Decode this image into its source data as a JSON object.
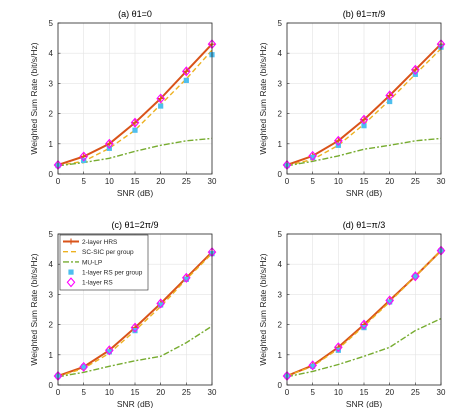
{
  "colors": {
    "hrs": "#d95319",
    "scsic": "#edb120",
    "mulp": "#77ac30",
    "rs_group": "#4dbeee",
    "rs1": "#ff00ff"
  },
  "legend_entries": [
    "2-layer HRS",
    "SC-SIC per group",
    "MU-LP",
    "1-layer RS per group",
    "1-layer RS"
  ],
  "chart_data": [
    {
      "type": "line",
      "title": "(a) θ1=0",
      "xlabel": "SNR (dB)",
      "ylabel": "Weighted Sum Rate (bit/s/Hz)",
      "xlim": [
        0,
        30
      ],
      "ylim": [
        0,
        5
      ],
      "xticks": [
        0,
        5,
        10,
        15,
        20,
        25,
        30
      ],
      "yticks": [
        0,
        1,
        2,
        3,
        4,
        5
      ],
      "grid": true,
      "legend": false,
      "x": [
        0,
        5,
        10,
        15,
        20,
        25,
        30
      ],
      "series": [
        {
          "name": "2-layer HRS",
          "values": [
            0.3,
            0.58,
            1.0,
            1.7,
            2.5,
            3.4,
            4.3
          ]
        },
        {
          "name": "SC-SIC per group",
          "values": [
            0.28,
            0.42,
            0.85,
            1.45,
            2.3,
            3.15,
            4.1
          ]
        },
        {
          "name": "MU-LP",
          "values": [
            0.27,
            0.38,
            0.52,
            0.75,
            0.95,
            1.1,
            1.18
          ]
        },
        {
          "name": "1-layer RS per group",
          "values": [
            0.28,
            0.45,
            0.85,
            1.45,
            2.25,
            3.1,
            3.95
          ]
        },
        {
          "name": "1-layer RS",
          "values": [
            0.3,
            0.58,
            1.0,
            1.7,
            2.5,
            3.4,
            4.3
          ]
        }
      ]
    },
    {
      "type": "line",
      "title": "(b) θ1=π/9",
      "xlabel": "SNR (dB)",
      "ylabel": "Weighted Sum Rate (bit/s/Hz)",
      "xlim": [
        0,
        30
      ],
      "ylim": [
        0,
        5
      ],
      "xticks": [
        0,
        5,
        10,
        15,
        20,
        25,
        30
      ],
      "yticks": [
        0,
        1,
        2,
        3,
        4,
        5
      ],
      "grid": true,
      "legend": false,
      "x": [
        0,
        5,
        10,
        15,
        20,
        25,
        30
      ],
      "series": [
        {
          "name": "2-layer HRS",
          "values": [
            0.3,
            0.6,
            1.1,
            1.8,
            2.6,
            3.45,
            4.3
          ]
        },
        {
          "name": "SC-SIC per group",
          "values": [
            0.28,
            0.48,
            0.95,
            1.65,
            2.45,
            3.3,
            4.15
          ]
        },
        {
          "name": "MU-LP",
          "values": [
            0.27,
            0.42,
            0.6,
            0.82,
            0.95,
            1.1,
            1.18
          ]
        },
        {
          "name": "1-layer RS per group",
          "values": [
            0.28,
            0.55,
            0.95,
            1.6,
            2.4,
            3.3,
            4.2
          ]
        },
        {
          "name": "1-layer RS",
          "values": [
            0.3,
            0.6,
            1.1,
            1.8,
            2.6,
            3.45,
            4.3
          ]
        }
      ]
    },
    {
      "type": "line",
      "title": "(c) θ1=2π/9",
      "xlabel": "SNR (dB)",
      "ylabel": "Weighted Sum Rate (bit/s/Hz)",
      "xlim": [
        0,
        30
      ],
      "ylim": [
        0,
        5
      ],
      "xticks": [
        0,
        5,
        10,
        15,
        20,
        25,
        30
      ],
      "yticks": [
        0,
        1,
        2,
        3,
        4,
        5
      ],
      "grid": true,
      "legend": true,
      "legend_position": "top-left",
      "x": [
        0,
        5,
        10,
        15,
        20,
        25,
        30
      ],
      "series": [
        {
          "name": "2-layer HRS",
          "values": [
            0.3,
            0.6,
            1.15,
            1.9,
            2.7,
            3.55,
            4.4
          ]
        },
        {
          "name": "SC-SIC per group",
          "values": [
            0.28,
            0.55,
            1.05,
            1.8,
            2.6,
            3.5,
            4.35
          ]
        },
        {
          "name": "MU-LP",
          "values": [
            0.27,
            0.42,
            0.62,
            0.8,
            0.95,
            1.4,
            1.95
          ]
        },
        {
          "name": "1-layer RS per group",
          "values": [
            0.3,
            0.6,
            1.1,
            1.8,
            2.65,
            3.5,
            4.35
          ]
        },
        {
          "name": "1-layer RS",
          "values": [
            0.3,
            0.6,
            1.15,
            1.9,
            2.7,
            3.55,
            4.4
          ]
        }
      ]
    },
    {
      "type": "line",
      "title": "(d) θ1=π/3",
      "xlabel": "SNR (dB)",
      "ylabel": "Weighted Sum Rate (bit/s/Hz)",
      "xlim": [
        0,
        30
      ],
      "ylim": [
        0,
        5
      ],
      "xticks": [
        0,
        5,
        10,
        15,
        20,
        25,
        30
      ],
      "yticks": [
        0,
        1,
        2,
        3,
        4,
        5
      ],
      "grid": true,
      "legend": false,
      "x": [
        0,
        5,
        10,
        15,
        20,
        25,
        30
      ],
      "series": [
        {
          "name": "2-layer HRS",
          "values": [
            0.3,
            0.65,
            1.25,
            2.0,
            2.8,
            3.6,
            4.45
          ]
        },
        {
          "name": "SC-SIC per group",
          "values": [
            0.3,
            0.62,
            1.2,
            1.95,
            2.75,
            3.6,
            4.45
          ]
        },
        {
          "name": "MU-LP",
          "values": [
            0.27,
            0.45,
            0.68,
            0.95,
            1.25,
            1.8,
            2.2
          ]
        },
        {
          "name": "1-layer RS per group",
          "values": [
            0.3,
            0.62,
            1.15,
            1.9,
            2.75,
            3.6,
            4.45
          ]
        },
        {
          "name": "1-layer RS",
          "values": [
            0.3,
            0.65,
            1.25,
            2.0,
            2.8,
            3.6,
            4.45
          ]
        }
      ]
    }
  ]
}
